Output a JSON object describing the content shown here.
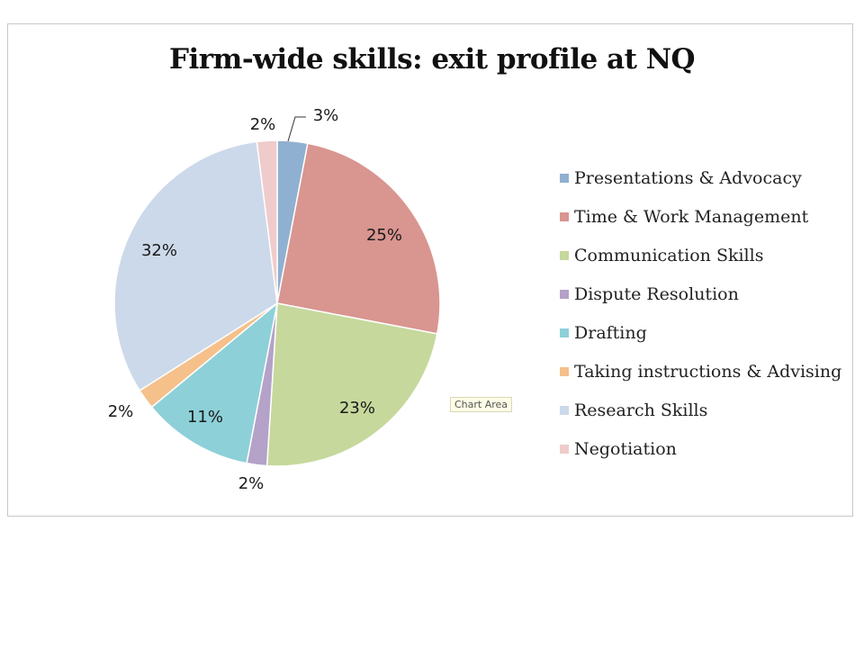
{
  "chart_data": {
    "type": "pie",
    "title": "Firm-wide skills: exit profile at NQ",
    "legend_position": "right",
    "slices": [
      {
        "label": "Presentations & Advocacy",
        "value": 3,
        "display": "3%",
        "color": "#8fb0d0"
      },
      {
        "label": "Time & Work Management",
        "value": 25,
        "display": "25%",
        "color": "#d99590"
      },
      {
        "label": "Communication Skills",
        "value": 23,
        "display": "23%",
        "color": "#c6d89c"
      },
      {
        "label": "Dispute Resolution",
        "value": 2,
        "display": "2%",
        "color": "#b4a2c8"
      },
      {
        "label": "Drafting",
        "value": 11,
        "display": "11%",
        "color": "#8dd0d8"
      },
      {
        "label": "Taking instructions & Advising",
        "value": 2,
        "display": "2%",
        "color": "#f5c08a"
      },
      {
        "label": "Research Skills",
        "value": 32,
        "display": "32%",
        "color": "#ccd9ea"
      },
      {
        "label": "Negotiation",
        "value": 2,
        "display": "2%",
        "color": "#f0cbcb"
      }
    ]
  },
  "tooltip": {
    "text": "Chart Area"
  }
}
